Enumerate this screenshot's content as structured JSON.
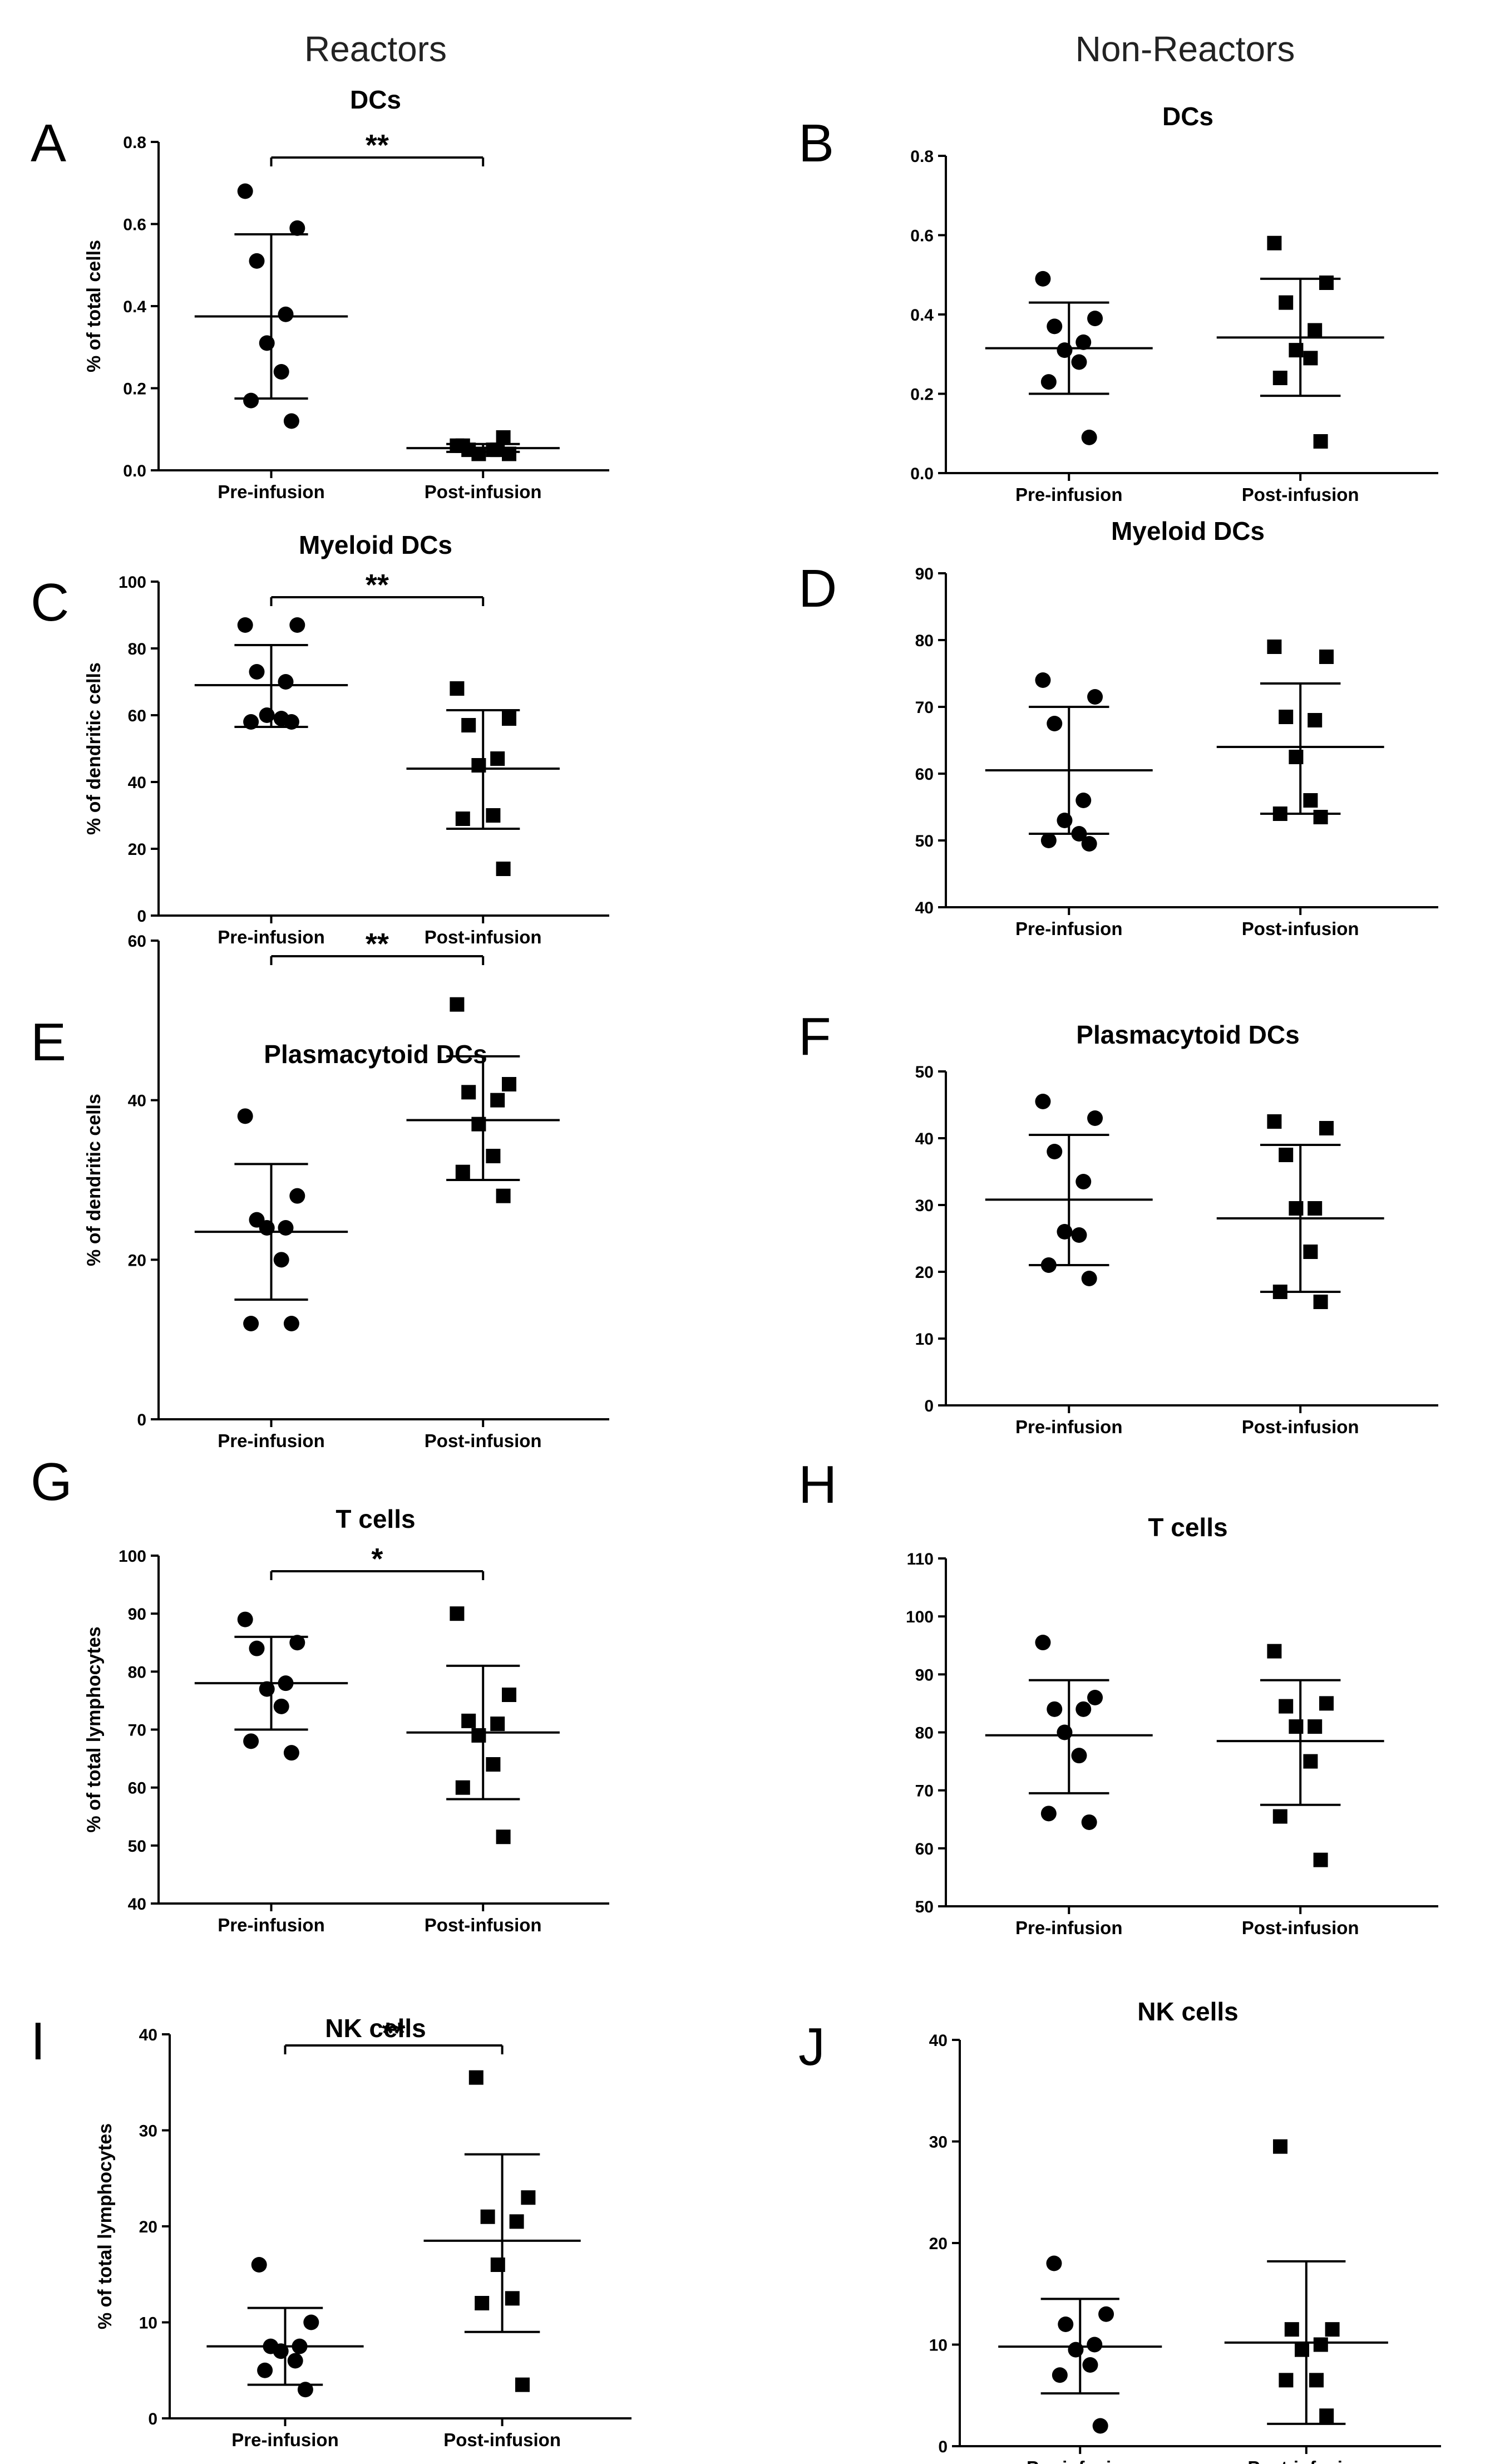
{
  "column_titles": [
    "Reactors",
    "Non-Reactors"
  ],
  "chart_data": [
    {
      "letter": "A",
      "type": "scatter",
      "title": "DCs",
      "ylabel": "% of total cells",
      "ylim": [
        0,
        0.8
      ],
      "yticks": [
        0.0,
        0.2,
        0.4,
        0.6,
        0.8
      ],
      "categories": [
        "Pre-infusion",
        "Post-infusion"
      ],
      "significance": "**",
      "series": [
        {
          "markers": "circle",
          "values": [
            0.68,
            0.59,
            0.51,
            0.38,
            0.31,
            0.24,
            0.17,
            0.12
          ],
          "mean": 0.375,
          "sd": [
            0.175,
            0.575
          ]
        },
        {
          "markers": "square",
          "values": [
            0.06,
            0.04,
            0.05,
            0.05,
            0.04,
            0.05,
            0.06,
            0.08
          ],
          "mean": 0.054,
          "sd": [
            0.045,
            0.064
          ]
        }
      ]
    },
    {
      "letter": "B",
      "type": "scatter",
      "title": "DCs",
      "ylabel": "",
      "ylim": [
        0,
        0.8
      ],
      "yticks": [
        0.0,
        0.2,
        0.4,
        0.6,
        0.8
      ],
      "categories": [
        "Pre-infusion",
        "Post-infusion"
      ],
      "significance": "",
      "series": [
        {
          "markers": "circle",
          "values": [
            0.49,
            0.39,
            0.37,
            0.33,
            0.31,
            0.28,
            0.23,
            0.09
          ],
          "mean": 0.315,
          "sd": [
            0.2,
            0.43
          ]
        },
        {
          "markers": "square",
          "values": [
            0.58,
            0.48,
            0.43,
            0.36,
            0.31,
            0.29,
            0.24,
            0.08
          ],
          "mean": 0.342,
          "sd": [
            0.195,
            0.49
          ]
        }
      ]
    },
    {
      "letter": "C",
      "type": "scatter",
      "title": "Myeloid DCs",
      "ylabel": "% of dendritic cells",
      "ylim": [
        0,
        100
      ],
      "yticks": [
        0,
        20,
        40,
        60,
        80,
        100
      ],
      "categories": [
        "Pre-infusion",
        "Post-infusion"
      ],
      "significance": "**",
      "series": [
        {
          "markers": "circle",
          "values": [
            87,
            87,
            73,
            70,
            60,
            59,
            58,
            58
          ],
          "mean": 69,
          "sd": [
            56.5,
            81
          ]
        },
        {
          "markers": "square",
          "values": [
            68,
            59,
            57,
            47,
            45,
            30,
            29,
            14
          ],
          "mean": 44,
          "sd": [
            26,
            61.5
          ]
        }
      ]
    },
    {
      "letter": "D",
      "type": "scatter",
      "title": "Myeloid DCs",
      "ylabel": "",
      "ylim": [
        40,
        90
      ],
      "yticks": [
        40,
        50,
        60,
        70,
        80,
        90
      ],
      "categories": [
        "Pre-infusion",
        "Post-infusion"
      ],
      "significance": "",
      "series": [
        {
          "markers": "circle",
          "values": [
            74,
            71.5,
            67.5,
            56,
            53,
            51,
            50,
            49.5
          ],
          "mean": 60.5,
          "sd": [
            51,
            70
          ]
        },
        {
          "markers": "square",
          "values": [
            79,
            77.5,
            68.5,
            68,
            62.5,
            56,
            54,
            53.5
          ],
          "mean": 64,
          "sd": [
            54,
            73.5
          ]
        }
      ]
    },
    {
      "letter": "E",
      "type": "scatter",
      "title": "Plasmacytoid DCs",
      "ylabel": "% of dendritic cells",
      "ylim": [
        0,
        60
      ],
      "yticks": [
        0,
        20,
        40,
        60
      ],
      "categories": [
        "Pre-infusion",
        "Post-infusion"
      ],
      "significance": "**",
      "series": [
        {
          "markers": "circle",
          "values": [
            38,
            28,
            25,
            24,
            24,
            20,
            12,
            12
          ],
          "mean": 23.5,
          "sd": [
            15,
            32
          ]
        },
        {
          "markers": "square",
          "values": [
            52,
            42,
            41,
            40,
            37,
            33,
            31,
            28
          ],
          "mean": 37.5,
          "sd": [
            30,
            45.5
          ]
        }
      ]
    },
    {
      "letter": "F",
      "type": "scatter",
      "title": "Plasmacytoid DCs",
      "ylabel": "",
      "ylim": [
        0,
        50
      ],
      "yticks": [
        0,
        10,
        20,
        30,
        40,
        50
      ],
      "categories": [
        "Pre-infusion",
        "Post-infusion"
      ],
      "significance": "",
      "series": [
        {
          "markers": "circle",
          "values": [
            45.5,
            43,
            38,
            33.5,
            26,
            25.5,
            21,
            19
          ],
          "mean": 30.8,
          "sd": [
            21,
            40.5
          ]
        },
        {
          "markers": "square",
          "values": [
            42.5,
            41.5,
            37.5,
            29.5,
            29.5,
            23,
            17,
            15.5
          ],
          "mean": 28,
          "sd": [
            17,
            39
          ]
        }
      ]
    },
    {
      "letter": "G",
      "type": "scatter",
      "title": "T cells",
      "ylabel": "% of total lymphocytes",
      "ylim": [
        40,
        100
      ],
      "yticks": [
        40,
        50,
        60,
        70,
        80,
        90,
        100
      ],
      "categories": [
        "Pre-infusion",
        "Post-infusion"
      ],
      "significance": "*",
      "series": [
        {
          "markers": "circle",
          "values": [
            89,
            85,
            84,
            78,
            77,
            74,
            68,
            66
          ],
          "mean": 78,
          "sd": [
            70,
            86
          ]
        },
        {
          "markers": "square",
          "values": [
            90,
            76,
            71.5,
            71,
            69,
            64,
            60,
            51.5
          ],
          "mean": 69.5,
          "sd": [
            58,
            81
          ]
        }
      ]
    },
    {
      "letter": "H",
      "type": "scatter",
      "title": "T cells",
      "ylabel": "",
      "ylim": [
        50,
        110
      ],
      "yticks": [
        50,
        60,
        70,
        80,
        90,
        100,
        110
      ],
      "categories": [
        "Pre-infusion",
        "Post-infusion"
      ],
      "significance": "",
      "series": [
        {
          "markers": "circle",
          "values": [
            95.5,
            86,
            84,
            84,
            80,
            76,
            66,
            64.5
          ],
          "mean": 79.5,
          "sd": [
            69.5,
            89
          ]
        },
        {
          "markers": "square",
          "values": [
            94,
            85,
            84.5,
            81,
            81,
            75,
            65.5,
            58
          ],
          "mean": 78.5,
          "sd": [
            67.5,
            89
          ]
        }
      ]
    },
    {
      "letter": "I",
      "type": "scatter",
      "title": "NK cells",
      "ylabel": "% of total lymphocytes",
      "ylim": [
        0,
        40
      ],
      "yticks": [
        0,
        10,
        20,
        30,
        40
      ],
      "categories": [
        "Pre-infusion",
        "Post-infusion"
      ],
      "significance": "**",
      "series": [
        {
          "markers": "circle",
          "values": [
            16,
            10,
            7.5,
            7.5,
            7,
            6,
            5,
            3
          ],
          "mean": 7.5,
          "sd": [
            3.5,
            11.5
          ]
        },
        {
          "markers": "square",
          "values": [
            35.5,
            23,
            21,
            20.5,
            16,
            12.5,
            12,
            3.5
          ],
          "mean": 18.5,
          "sd": [
            9,
            27.5
          ]
        }
      ]
    },
    {
      "letter": "J",
      "type": "scatter",
      "title": "NK cells",
      "ylabel": "",
      "ylim": [
        0,
        40
      ],
      "yticks": [
        0,
        10,
        20,
        30,
        40
      ],
      "categories": [
        "Pre-infusion",
        "Post-infusion"
      ],
      "significance": "",
      "series": [
        {
          "markers": "circle",
          "values": [
            18,
            13,
            12,
            10,
            9.5,
            8,
            7,
            2
          ],
          "mean": 9.8,
          "sd": [
            5.2,
            14.5
          ]
        },
        {
          "markers": "square",
          "values": [
            29.5,
            11.5,
            11.5,
            10,
            9.5,
            6.5,
            6.5,
            3
          ],
          "mean": 10.2,
          "sd": [
            2.2,
            18.2
          ]
        }
      ]
    }
  ]
}
